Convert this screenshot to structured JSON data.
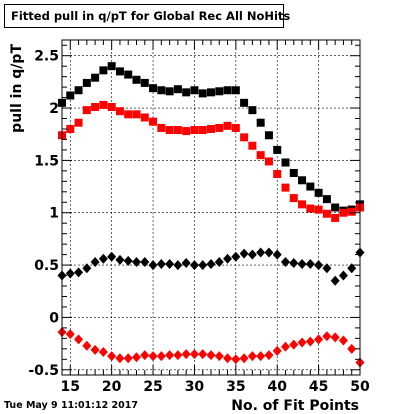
{
  "title": "Fitted pull in q/pT for Global Rec All NoHits",
  "timestamp": "Tue May  9 11:01:12 2017",
  "chart_data": {
    "type": "scatter",
    "title": "Fitted pull in q/pT for Global Rec All NoHits",
    "xlabel": "No. of Fit Points",
    "ylabel": "pull in q/pT",
    "xlim": [
      14,
      50
    ],
    "ylim": [
      -0.55,
      2.65
    ],
    "xticks": [
      15,
      20,
      25,
      30,
      35,
      40,
      45,
      50
    ],
    "yticks": [
      -0.5,
      0,
      0.5,
      1,
      1.5,
      2,
      2.5
    ],
    "ytick_labels": [
      "-0.5",
      "0",
      "0.5",
      "1",
      "1.5",
      "2",
      "2.5"
    ],
    "grid": true,
    "series": [
      {
        "color": "#000000",
        "marker": "square",
        "x": [
          14,
          15,
          16,
          17,
          18,
          19,
          20,
          21,
          22,
          23,
          24,
          25,
          26,
          27,
          28,
          29,
          30,
          31,
          32,
          33,
          34,
          35,
          36,
          37,
          38,
          39,
          40,
          41,
          42,
          43,
          44,
          45,
          46,
          47,
          48,
          49,
          50
        ],
        "y": [
          2.05,
          2.12,
          2.17,
          2.24,
          2.29,
          2.36,
          2.4,
          2.35,
          2.32,
          2.27,
          2.24,
          2.19,
          2.17,
          2.16,
          2.18,
          2.15,
          2.17,
          2.14,
          2.15,
          2.16,
          2.17,
          2.17,
          2.05,
          1.98,
          1.86,
          1.74,
          1.6,
          1.48,
          1.38,
          1.31,
          1.25,
          1.19,
          1.13,
          1.05,
          1.02,
          1.03,
          1.08
        ]
      },
      {
        "color": "#ff0000",
        "marker": "square",
        "x": [
          14,
          15,
          16,
          17,
          18,
          19,
          20,
          21,
          22,
          23,
          24,
          25,
          26,
          27,
          28,
          29,
          30,
          31,
          32,
          33,
          34,
          35,
          36,
          37,
          38,
          39,
          40,
          41,
          42,
          43,
          44,
          45,
          46,
          47,
          48,
          49,
          50
        ],
        "y": [
          1.74,
          1.8,
          1.86,
          1.98,
          2.01,
          2.03,
          2.01,
          1.97,
          1.94,
          1.94,
          1.91,
          1.87,
          1.81,
          1.79,
          1.79,
          1.78,
          1.79,
          1.79,
          1.8,
          1.81,
          1.83,
          1.81,
          1.72,
          1.64,
          1.55,
          1.49,
          1.37,
          1.24,
          1.14,
          1.08,
          1.04,
          1.03,
          0.99,
          0.95,
          1.0,
          1.01,
          1.05
        ]
      },
      {
        "color": "#000000",
        "marker": "diamond",
        "x": [
          14,
          15,
          16,
          17,
          18,
          19,
          20,
          21,
          22,
          23,
          24,
          25,
          26,
          27,
          28,
          29,
          30,
          31,
          32,
          33,
          34,
          35,
          36,
          37,
          38,
          39,
          40,
          41,
          42,
          43,
          44,
          45,
          46,
          47,
          48,
          49,
          50
        ],
        "y": [
          0.4,
          0.42,
          0.43,
          0.47,
          0.53,
          0.56,
          0.58,
          0.55,
          0.54,
          0.53,
          0.53,
          0.5,
          0.51,
          0.51,
          0.5,
          0.52,
          0.5,
          0.5,
          0.51,
          0.53,
          0.56,
          0.58,
          0.61,
          0.6,
          0.62,
          0.62,
          0.6,
          0.53,
          0.52,
          0.51,
          0.51,
          0.5,
          0.47,
          0.35,
          0.4,
          0.47,
          0.62
        ]
      },
      {
        "color": "#ff0000",
        "marker": "diamond",
        "x": [
          14,
          15,
          16,
          17,
          18,
          19,
          20,
          21,
          22,
          23,
          24,
          25,
          26,
          27,
          28,
          29,
          30,
          31,
          32,
          33,
          34,
          35,
          36,
          37,
          38,
          39,
          40,
          41,
          42,
          43,
          44,
          45,
          46,
          47,
          48,
          49,
          50
        ],
        "y": [
          -0.14,
          -0.16,
          -0.21,
          -0.27,
          -0.31,
          -0.33,
          -0.37,
          -0.39,
          -0.39,
          -0.38,
          -0.36,
          -0.37,
          -0.37,
          -0.36,
          -0.36,
          -0.35,
          -0.35,
          -0.35,
          -0.36,
          -0.37,
          -0.39,
          -0.4,
          -0.39,
          -0.37,
          -0.37,
          -0.36,
          -0.32,
          -0.28,
          -0.26,
          -0.24,
          -0.23,
          -0.21,
          -0.18,
          -0.19,
          -0.22,
          -0.3,
          -0.43
        ]
      }
    ]
  }
}
